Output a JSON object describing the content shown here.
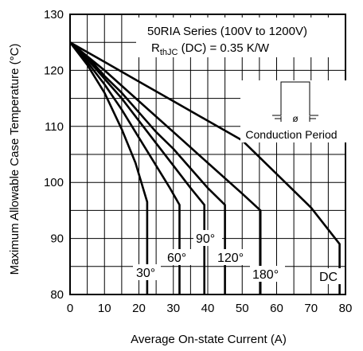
{
  "chart_data": {
    "type": "line",
    "xlabel": "Average On-state Current (A)",
    "ylabel": "Maximum Allowable Case Temperature (°C)",
    "xlim": [
      0,
      80
    ],
    "ylim": [
      80,
      130
    ],
    "x_ticks": [
      "0",
      "10",
      "20",
      "30",
      "40",
      "50",
      "60",
      "70",
      "80"
    ],
    "y_ticks": [
      "80",
      "90",
      "100",
      "110",
      "120",
      "130"
    ],
    "grid": true,
    "legend": "none",
    "annotation": {
      "line1": "50RIA Series (100V to 1200V)",
      "line2_main": "R",
      "line2_sub": "thJC",
      "line2_rest": " (DC) = 0.35 K/W"
    },
    "inset": {
      "symbol": "ø",
      "label": "Conduction Period"
    },
    "series": [
      {
        "name": "30°",
        "x": [
          0,
          5,
          10,
          15,
          19,
          22.4,
          22.4
        ],
        "y": [
          125,
          121,
          116,
          109.5,
          103.5,
          96.5,
          80
        ]
      },
      {
        "name": "60°",
        "x": [
          0,
          5,
          10,
          15,
          20,
          25,
          29,
          31.8,
          31.8
        ],
        "y": [
          125,
          121.5,
          117.5,
          113,
          108,
          103,
          99,
          96,
          80
        ]
      },
      {
        "name": "90°",
        "x": [
          0,
          5,
          10,
          15,
          20,
          25,
          30,
          35,
          39,
          39,
          39
        ],
        "y": [
          125,
          122,
          118.5,
          115,
          111,
          107,
          103,
          99,
          96,
          96,
          80
        ]
      },
      {
        "name": "120°",
        "x": [
          0,
          5,
          10,
          15,
          20,
          25,
          30,
          35,
          40,
          45,
          45
        ],
        "y": [
          125,
          122.5,
          119,
          116,
          112.5,
          109,
          106,
          102.5,
          99,
          96,
          80
        ]
      },
      {
        "name": "180°",
        "x": [
          0,
          10,
          20,
          30,
          40,
          50,
          55.3,
          55.3
        ],
        "y": [
          125,
          120,
          114.5,
          109,
          103.5,
          98,
          95,
          80
        ]
      },
      {
        "name": "DC",
        "x": [
          0,
          10,
          20,
          30,
          40,
          50,
          60,
          70,
          78.3,
          78.3
        ],
        "y": [
          125,
          121.5,
          118,
          114.5,
          111,
          107.5,
          101.5,
          95.5,
          89,
          80
        ]
      }
    ],
    "series_labels": [
      "30°",
      "60°",
      "90°",
      "120°",
      "180°",
      "DC"
    ]
  }
}
